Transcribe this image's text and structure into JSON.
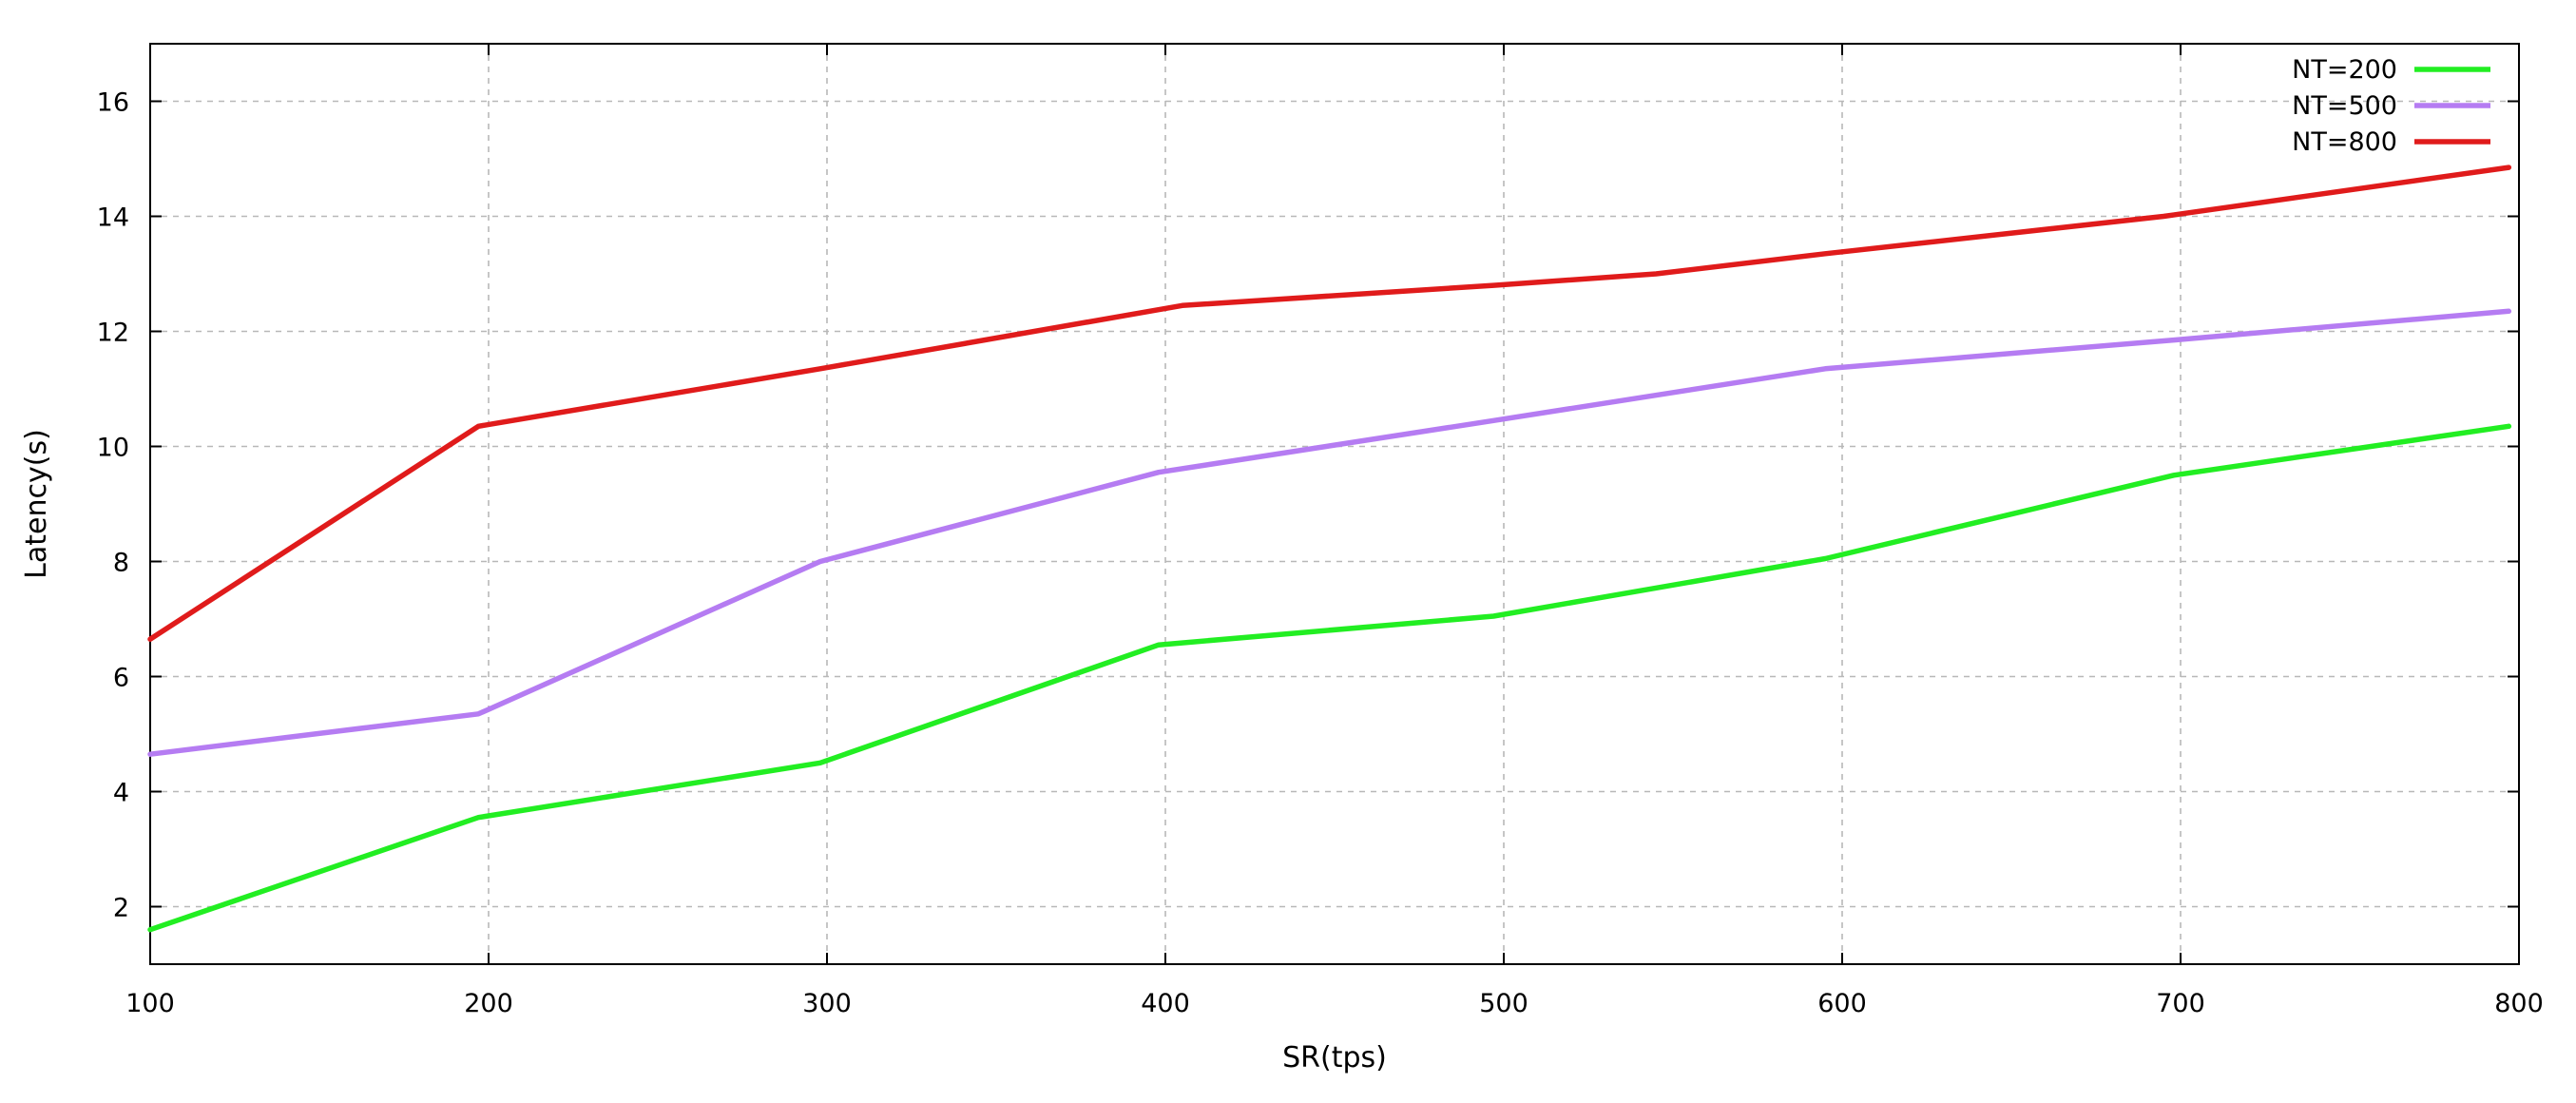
{
  "chart_data": {
    "type": "line",
    "title": "",
    "xlabel": "SR(tps)",
    "ylabel": "Latency(s)",
    "xlim": [
      100,
      800
    ],
    "ylim": [
      1,
      17
    ],
    "xticks": [
      100,
      200,
      300,
      400,
      500,
      600,
      700,
      800
    ],
    "yticks": [
      2,
      4,
      6,
      8,
      10,
      12,
      14,
      16
    ],
    "grid": true,
    "legend_position": "top-right",
    "series": [
      {
        "name": "NT=200",
        "color": "#22ee22",
        "x": [
          100,
          197,
          298,
          398,
          497,
          595,
          698,
          797
        ],
        "y": [
          1.6,
          3.55,
          4.5,
          6.55,
          7.05,
          8.05,
          9.5,
          10.35
        ]
      },
      {
        "name": "NT=500",
        "color": "#b57cf2",
        "x": [
          100,
          197,
          298,
          398,
          497,
          595,
          698,
          797
        ],
        "y": [
          4.65,
          5.35,
          8.0,
          9.55,
          10.45,
          11.35,
          11.85,
          12.35
        ]
      },
      {
        "name": "NT=800",
        "color": "#e01b1b",
        "x": [
          100,
          197,
          298,
          405,
          497,
          545,
          595,
          695,
          797
        ],
        "y": [
          6.65,
          10.35,
          11.35,
          12.45,
          12.8,
          13.0,
          13.35,
          14.0,
          14.85
        ]
      }
    ]
  }
}
